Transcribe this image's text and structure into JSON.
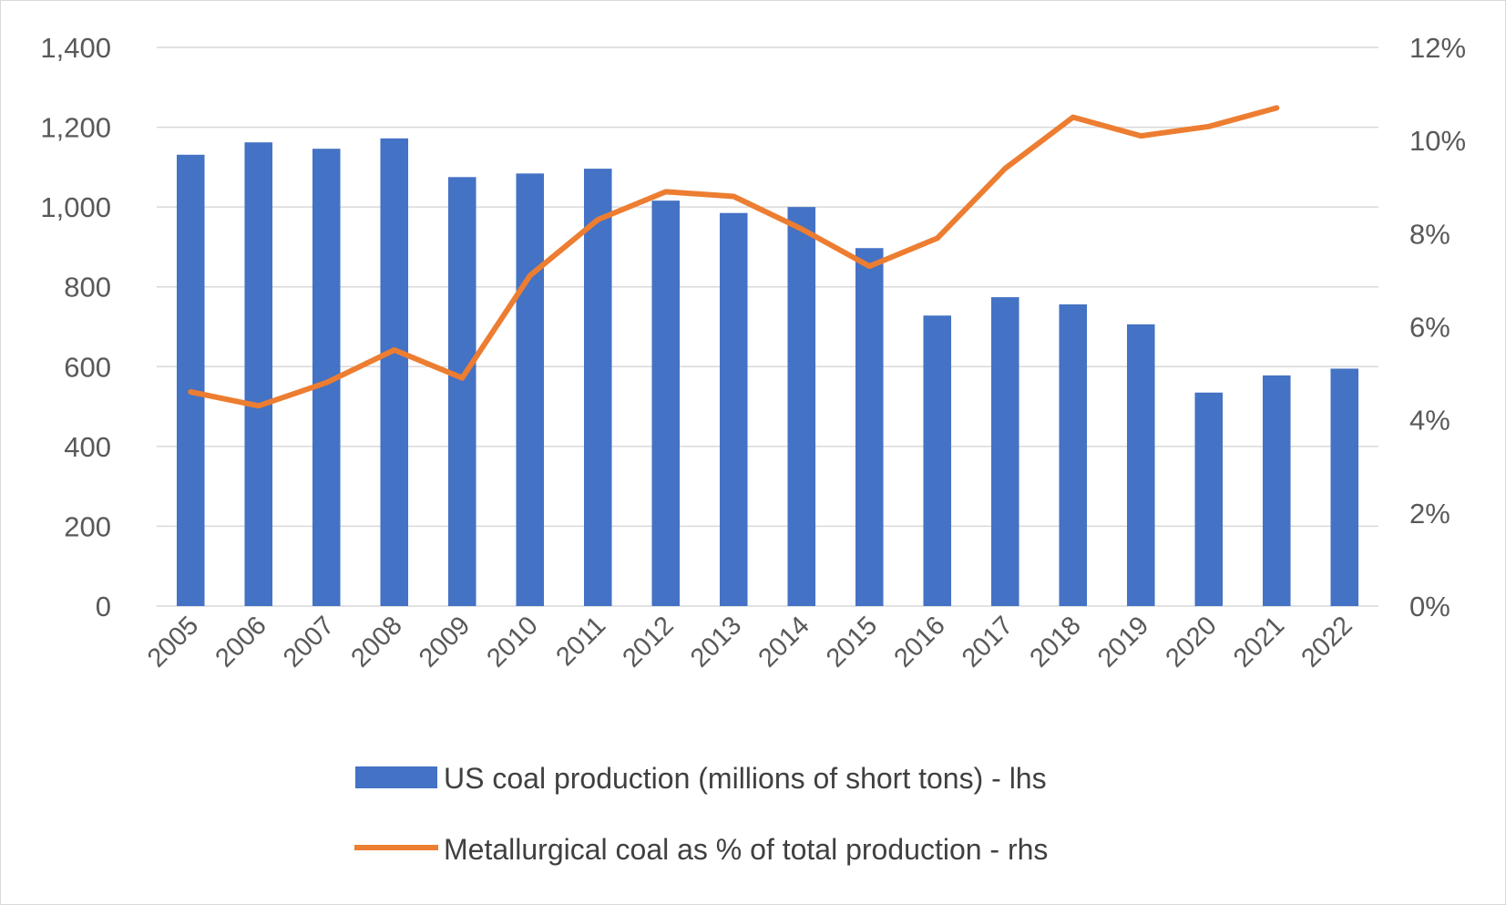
{
  "chart_data": {
    "type": "bar",
    "categories": [
      "2005",
      "2006",
      "2007",
      "2008",
      "2009",
      "2010",
      "2011",
      "2012",
      "2013",
      "2014",
      "2015",
      "2016",
      "2017",
      "2018",
      "2019",
      "2020",
      "2021",
      "2022"
    ],
    "series": [
      {
        "name": "US coal production (millions of short tons) - lhs",
        "type": "bar",
        "axis": "left",
        "color": "#4472c4",
        "values": [
          1131,
          1162,
          1146,
          1172,
          1075,
          1084,
          1096,
          1016,
          985,
          1000,
          897,
          728,
          774,
          756,
          706,
          535,
          578,
          595
        ]
      },
      {
        "name": "Metallurgical coal as % of total production - rhs",
        "type": "line",
        "axis": "right",
        "color": "#ed7d31",
        "values": [
          4.6,
          4.3,
          4.8,
          5.5,
          4.9,
          7.1,
          8.3,
          8.9,
          8.8,
          8.1,
          7.3,
          7.9,
          9.4,
          10.5,
          10.1,
          10.3,
          10.7,
          null
        ]
      }
    ],
    "y_left": {
      "min": 0,
      "max": 1400,
      "ticks": [
        "0",
        "200",
        "400",
        "600",
        "800",
        "1,000",
        "1,200",
        "1,400"
      ]
    },
    "y_right": {
      "min": 0,
      "max": 12,
      "ticks": [
        "0%",
        "2%",
        "4%",
        "6%",
        "8%",
        "10%",
        "12%"
      ]
    },
    "grid": true,
    "legend_position": "bottom",
    "title": "",
    "xlabel": "",
    "ylabel": ""
  }
}
